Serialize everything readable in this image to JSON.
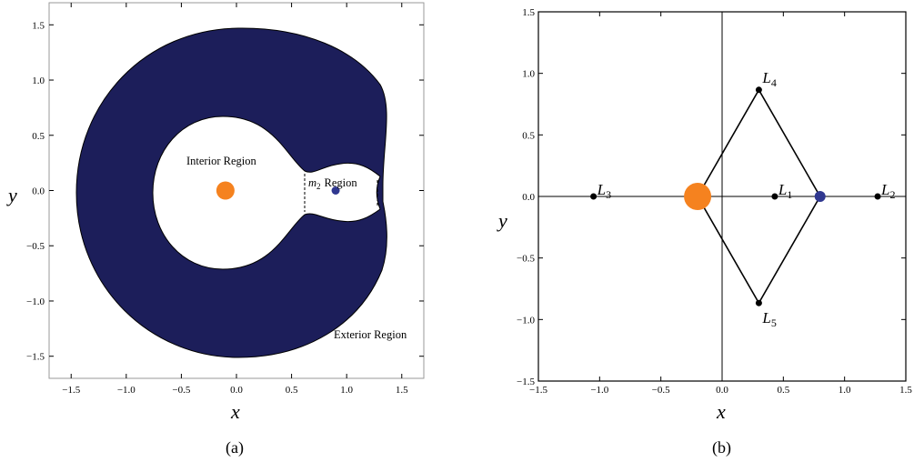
{
  "colors": {
    "zvc_fill": "#1c1e5a",
    "primary": "#f5821f",
    "secondary": "#303890",
    "point": "#000000"
  },
  "panel_a": {
    "caption": "(a)",
    "xlabel": "x",
    "ylabel": "y",
    "xlim": [
      -1.7,
      1.7
    ],
    "ylim": [
      -1.7,
      1.7
    ],
    "xticks": [
      "-1.5",
      "-1.0",
      "-0.5",
      "0.0",
      "0.5",
      "1.0",
      "1.5"
    ],
    "yticks": [
      "-1.5",
      "-1.0",
      "-0.5",
      "0.0",
      "0.5",
      "1.0",
      "1.5"
    ],
    "primary": {
      "x": -0.1,
      "y": 0.0
    },
    "secondary": {
      "x": 0.9,
      "y": 0.0
    },
    "labels": {
      "interior": "Interior Region",
      "m2_symbol": "m",
      "m2_sub": "2",
      "m2_word": "Region",
      "exterior": "Exterior Region"
    }
  },
  "panel_b": {
    "caption": "(b)",
    "xlabel": "x",
    "ylabel": "y",
    "xlim": [
      -1.5,
      1.5
    ],
    "ylim": [
      -1.5,
      1.5
    ],
    "xticks": [
      "-1.5",
      "-1.0",
      "-0.5",
      "0.0",
      "0.5",
      "1.0",
      "1.5"
    ],
    "yticks": [
      "-1.5",
      "-1.0",
      "-0.5",
      "0.0",
      "0.5",
      "1.0",
      "1.5"
    ],
    "primary": {
      "x": -0.2,
      "y": 0.0
    },
    "secondary": {
      "x": 0.8,
      "y": 0.0
    },
    "lagrange_points": [
      {
        "name": "L",
        "sub": "1",
        "x": 0.43,
        "y": 0.0
      },
      {
        "name": "L",
        "sub": "2",
        "x": 1.27,
        "y": 0.0
      },
      {
        "name": "L",
        "sub": "3",
        "x": -1.05,
        "y": 0.0
      },
      {
        "name": "L",
        "sub": "4",
        "x": 0.3,
        "y": 0.866
      },
      {
        "name": "L",
        "sub": "5",
        "x": 0.3,
        "y": -0.866
      }
    ]
  }
}
